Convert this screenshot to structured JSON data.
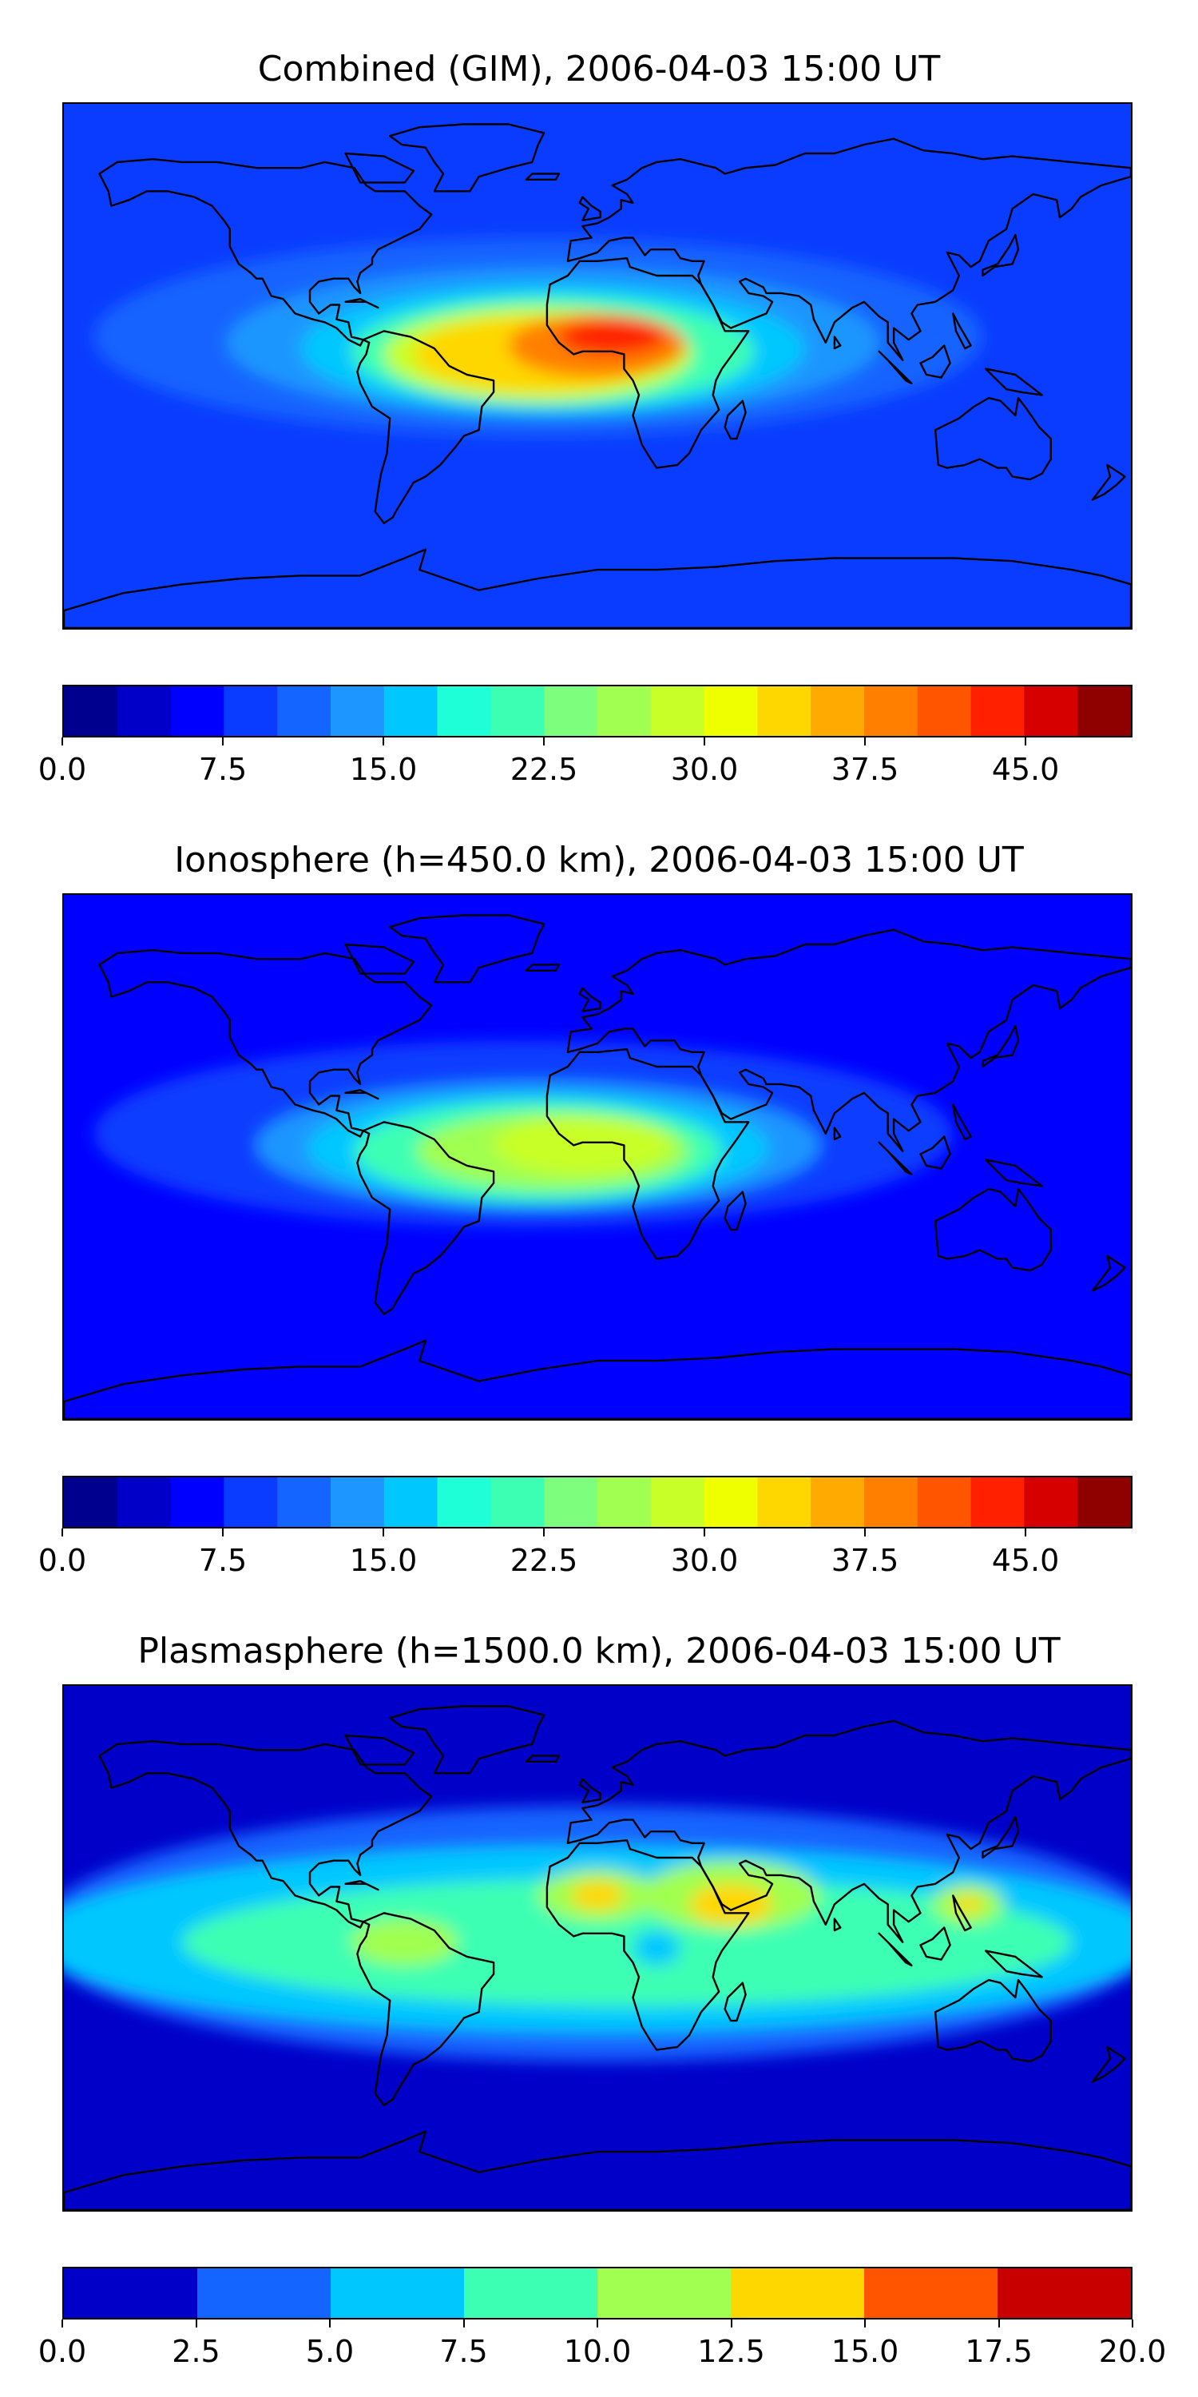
{
  "panels": [
    {
      "title": "Combined (GIM), 2006-04-03 15:00 UT",
      "colorbar": {
        "min": 0,
        "max": 50,
        "levels": 20,
        "tick_labels": [
          "0.0",
          "7.5",
          "15.0",
          "22.5",
          "30.0",
          "37.5",
          "45.0"
        ],
        "tick_values": [
          0,
          7.5,
          15,
          22.5,
          30,
          37.5,
          45
        ],
        "colors": [
          "#00008f",
          "#0000c9",
          "#0000ff",
          "#0a3cff",
          "#1464ff",
          "#1e96ff",
          "#00c8ff",
          "#1effd8",
          "#3cffb4",
          "#7dff7d",
          "#a0ff50",
          "#c8ff28",
          "#f0ff00",
          "#ffd700",
          "#ffaa00",
          "#ff8000",
          "#ff5500",
          "#ff2000",
          "#d60000",
          "#8f0000"
        ]
      },
      "map": {
        "background": "#0a3cff",
        "blobs": [
          {
            "color": "#1464ff",
            "lon": -20,
            "lat": 10,
            "rx": 150,
            "ry": 34
          },
          {
            "color": "#1e96ff",
            "lon": -15,
            "lat": 8,
            "rx": 110,
            "ry": 26
          },
          {
            "color": "#00c8ff",
            "lon": -15,
            "lat": 6,
            "rx": 85,
            "ry": 22
          },
          {
            "color": "#3cffb4",
            "lon": -15,
            "lat": 5,
            "rx": 68,
            "ry": 19
          },
          {
            "color": "#c8ff28",
            "lon": -20,
            "lat": 4,
            "rx": 52,
            "ry": 16
          },
          {
            "color": "#ffd700",
            "lon": -20,
            "lat": 4,
            "rx": 42,
            "ry": 13
          },
          {
            "color": "#ff8000",
            "lon": 0,
            "lat": 7,
            "rx": 30,
            "ry": 11
          },
          {
            "color": "#ff2000",
            "lon": 5,
            "lat": 10,
            "rx": 18,
            "ry": 6
          }
        ]
      }
    },
    {
      "title": "Ionosphere  (h=450.0 km), 2006-04-03 15:00 UT",
      "colorbar": {
        "min": 0,
        "max": 50,
        "levels": 20,
        "tick_labels": [
          "0.0",
          "7.5",
          "15.0",
          "22.5",
          "30.0",
          "37.5",
          "45.0"
        ],
        "tick_values": [
          0,
          7.5,
          15,
          22.5,
          30,
          37.5,
          45
        ],
        "colors": [
          "#00008f",
          "#0000c9",
          "#0000ff",
          "#0a3cff",
          "#1464ff",
          "#1e96ff",
          "#00c8ff",
          "#1effd8",
          "#3cffb4",
          "#7dff7d",
          "#a0ff50",
          "#c8ff28",
          "#f0ff00",
          "#ffd700",
          "#ffaa00",
          "#ff8000",
          "#ff5500",
          "#ff2000",
          "#d60000",
          "#8f0000"
        ]
      },
      "map": {
        "background": "#0000ff",
        "blobs": [
          {
            "color": "#0a3cff",
            "lon": -25,
            "lat": 8,
            "rx": 145,
            "ry": 32
          },
          {
            "color": "#1e96ff",
            "lon": -20,
            "lat": 4,
            "rx": 95,
            "ry": 22
          },
          {
            "color": "#00c8ff",
            "lon": -20,
            "lat": 3,
            "rx": 78,
            "ry": 19
          },
          {
            "color": "#3cffb4",
            "lon": -20,
            "lat": 2,
            "rx": 62,
            "ry": 17
          },
          {
            "color": "#a0ff50",
            "lon": -15,
            "lat": 2,
            "rx": 46,
            "ry": 13
          },
          {
            "color": "#c8ff28",
            "lon": -5,
            "lat": 4,
            "rx": 30,
            "ry": 10
          }
        ]
      }
    },
    {
      "title": "Plasmasphere (h=1500.0 km), 2006-04-03 15:00 UT",
      "colorbar": {
        "min": 0,
        "max": 20,
        "levels": 8,
        "tick_labels": [
          "0.0",
          "2.5",
          "5.0",
          "7.5",
          "10.0",
          "12.5",
          "15.0",
          "17.5",
          "20.0"
        ],
        "tick_values": [
          0,
          2.5,
          5,
          7.5,
          10,
          12.5,
          15,
          17.5,
          20
        ],
        "colors": [
          "#0000c9",
          "#1464ff",
          "#00c8ff",
          "#3cffb4",
          "#a0ff50",
          "#ffd700",
          "#ff5500",
          "#c80000"
        ]
      },
      "map": {
        "background": "#0000c9",
        "blobs": [
          {
            "color": "#1464ff",
            "lon": 0,
            "lat": 5,
            "rx": 190,
            "ry": 44
          },
          {
            "color": "#00c8ff",
            "lon": 0,
            "lat": 3,
            "rx": 190,
            "ry": 32
          },
          {
            "color": "#3cffb4",
            "lon": 10,
            "lat": 2,
            "rx": 150,
            "ry": 22
          },
          {
            "color": "#a0ff50",
            "lon": 0,
            "lat": 18,
            "rx": 20,
            "ry": 9
          },
          {
            "color": "#a0ff50",
            "lon": 45,
            "lat": 18,
            "rx": 30,
            "ry": 12
          },
          {
            "color": "#ffd700",
            "lon": 0,
            "lat": 18,
            "rx": 9,
            "ry": 5
          },
          {
            "color": "#ffd700",
            "lon": 45,
            "lat": 15,
            "rx": 14,
            "ry": 7
          },
          {
            "color": "#a0ff50",
            "lon": 125,
            "lat": 15,
            "rx": 12,
            "ry": 7
          },
          {
            "color": "#ffd700",
            "lon": 125,
            "lat": 15,
            "rx": 5,
            "ry": 3
          },
          {
            "color": "#a0ff50",
            "lon": -65,
            "lat": 2,
            "rx": 18,
            "ry": 8
          },
          {
            "color": "#00c8ff",
            "lon": 20,
            "lat": 0,
            "rx": 8,
            "ry": 6
          }
        ]
      }
    }
  ]
}
